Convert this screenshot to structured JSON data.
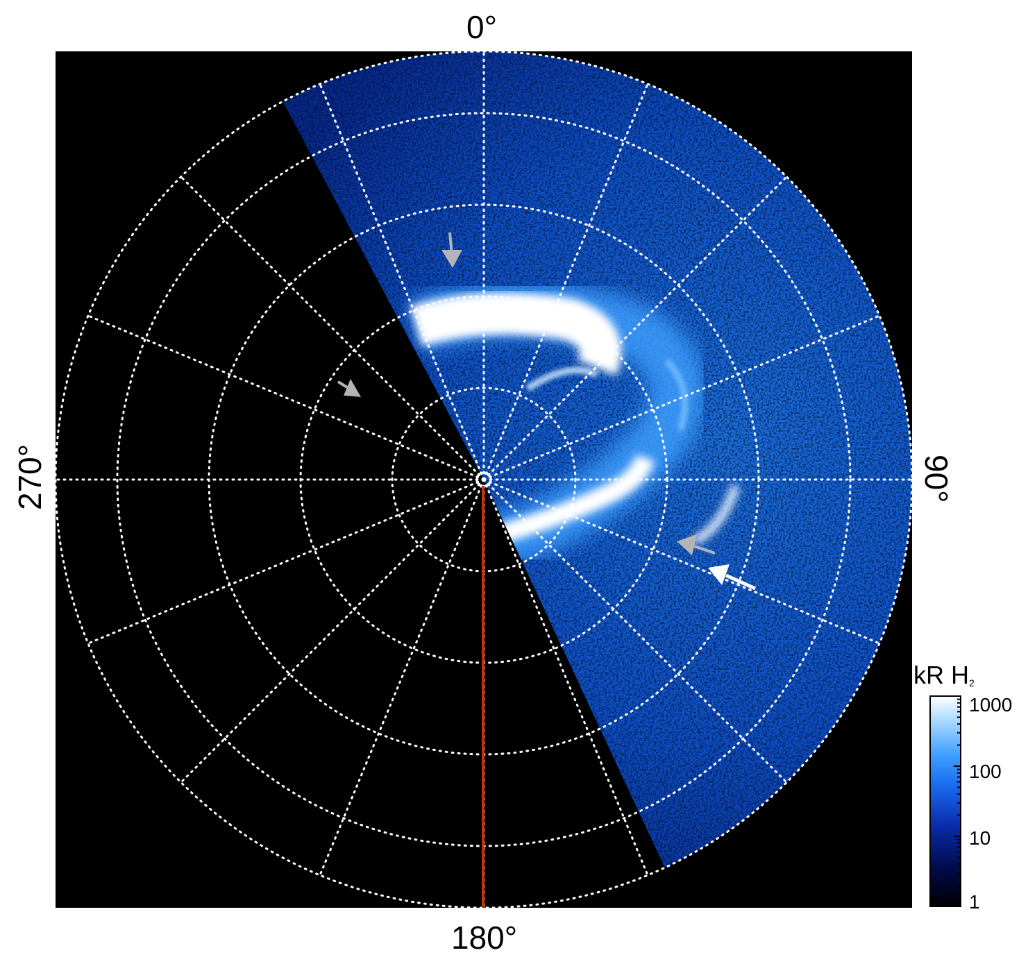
{
  "polar_labels": {
    "top": "0°",
    "right": "90°",
    "bottom": "180°",
    "left": "270°"
  },
  "colorbar": {
    "title_main": "kR H",
    "title_sub": "2",
    "ticks": [
      "1000",
      "100",
      "10",
      "1"
    ],
    "scale": "log",
    "range": [
      1,
      1000
    ],
    "colors": [
      "#000000",
      "#000a4a",
      "#0a2aa8",
      "#1a6df0",
      "#3fa0ff",
      "#a8d8ff",
      "#ffffff"
    ]
  },
  "colors": {
    "background": "#000000",
    "grid": "#ffffff",
    "meridian_line": "#c83200",
    "arrow_gray": "#b4b4b4",
    "arrow_white": "#ffffff"
  },
  "arrows": [
    {
      "name": "arrow-top",
      "color": "gray"
    },
    {
      "name": "arrow-left",
      "color": "gray"
    },
    {
      "name": "arrow-right-gray",
      "color": "gray"
    },
    {
      "name": "arrow-right-white",
      "color": "white"
    }
  ]
}
